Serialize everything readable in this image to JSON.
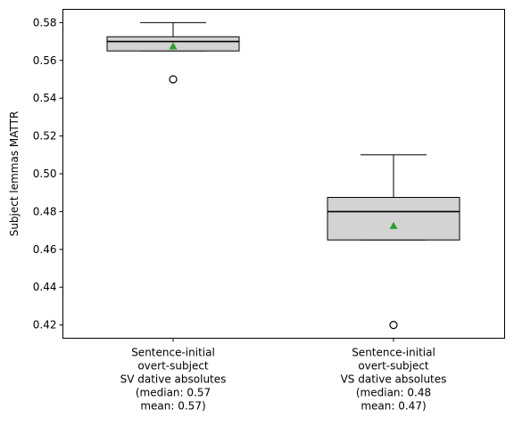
{
  "chart_data": {
    "type": "boxplot",
    "title": "",
    "xlabel": "",
    "ylabel": "Subject lemmas MATTR",
    "ylim": [
      0.413,
      0.587
    ],
    "yticks": [
      0.42,
      0.44,
      0.46,
      0.48,
      0.5,
      0.52,
      0.54,
      0.56,
      0.58
    ],
    "ytick_labels": [
      "0.42",
      "0.44",
      "0.46",
      "0.48",
      "0.50",
      "0.52",
      "0.54",
      "0.56",
      "0.58"
    ],
    "grid": false,
    "categories": [
      [
        "Sentence-initial",
        "overt-subject",
        "SV dative absolutes",
        "(median: 0.57",
        "mean: 0.57)"
      ],
      [
        "Sentence-initial",
        "overt-subject",
        "VS dative absolutes",
        "(median: 0.48",
        "mean: 0.47)"
      ]
    ],
    "boxes": [
      {
        "whisker_low": 0.565,
        "q1": 0.565,
        "median": 0.57,
        "q3": 0.5725,
        "whisker_high": 0.58,
        "mean": 0.5675,
        "outliers": [
          0.55
        ]
      },
      {
        "whisker_low": 0.465,
        "q1": 0.465,
        "median": 0.48,
        "q3": 0.4875,
        "whisker_high": 0.51,
        "mean": 0.4725,
        "outliers": [
          0.42
        ]
      }
    ],
    "colors": {
      "box_fill": "#d3d3d3",
      "box_edge": "#000000",
      "mean_marker": "#2ca02c",
      "outlier_edge": "#000000"
    }
  }
}
